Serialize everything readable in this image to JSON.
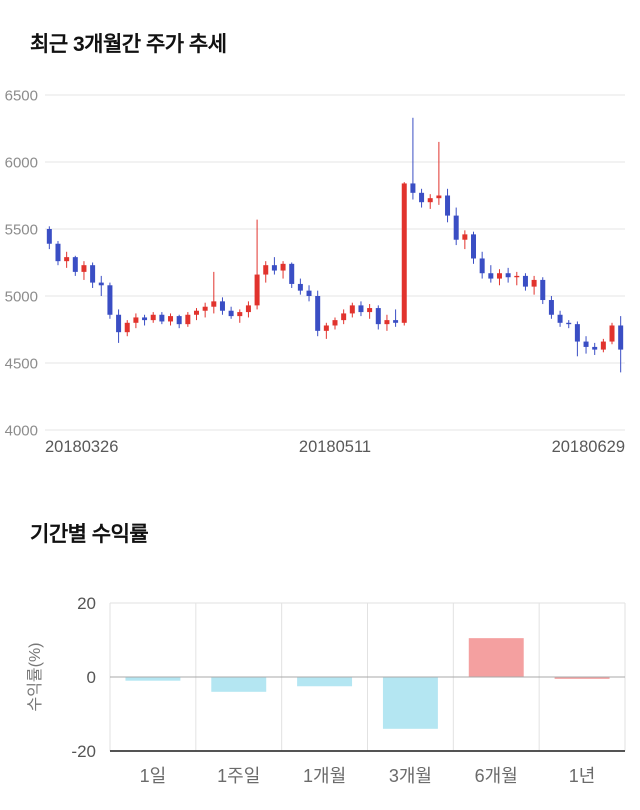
{
  "chart_data": [
    {
      "type": "candlestick",
      "title": "최근 3개월간 주가 추세",
      "ylim": [
        4000,
        6500
      ],
      "yticks": [
        4000,
        4500,
        5000,
        5500,
        6000,
        6500
      ],
      "xtick_labels": [
        "20180326",
        "20180511",
        "20180629"
      ],
      "up_color": "#e1332d",
      "down_color": "#3a4ec4",
      "grid_color": "#e4e4e4",
      "candles": [
        [
          5500,
          5520,
          5350,
          5390
        ],
        [
          5390,
          5410,
          5230,
          5260
        ],
        [
          5260,
          5330,
          5210,
          5290
        ],
        [
          5290,
          5300,
          5150,
          5180
        ],
        [
          5180,
          5260,
          5120,
          5230
        ],
        [
          5230,
          5250,
          5060,
          5100
        ],
        [
          5100,
          5150,
          5000,
          5080
        ],
        [
          5080,
          5100,
          4830,
          4860
        ],
        [
          4860,
          4900,
          4650,
          4730
        ],
        [
          4730,
          4820,
          4700,
          4800
        ],
        [
          4800,
          4870,
          4760,
          4840
        ],
        [
          4840,
          4860,
          4780,
          4820
        ],
        [
          4820,
          4880,
          4800,
          4860
        ],
        [
          4860,
          4880,
          4790,
          4810
        ],
        [
          4810,
          4870,
          4780,
          4850
        ],
        [
          4850,
          4860,
          4760,
          4790
        ],
        [
          4790,
          4880,
          4770,
          4860
        ],
        [
          4860,
          4910,
          4820,
          4890
        ],
        [
          4890,
          4950,
          4840,
          4920
        ],
        [
          4920,
          5180,
          4870,
          4960
        ],
        [
          4960,
          4990,
          4860,
          4890
        ],
        [
          4890,
          4920,
          4830,
          4850
        ],
        [
          4850,
          4900,
          4800,
          4880
        ],
        [
          4880,
          4960,
          4840,
          4930
        ],
        [
          4930,
          5570,
          4900,
          5160
        ],
        [
          5160,
          5260,
          5100,
          5230
        ],
        [
          5230,
          5290,
          5160,
          5190
        ],
        [
          5190,
          5260,
          5130,
          5240
        ],
        [
          5240,
          5250,
          5060,
          5090
        ],
        [
          5090,
          5130,
          5010,
          5040
        ],
        [
          5040,
          5080,
          4960,
          5000
        ],
        [
          5000,
          5040,
          4700,
          4740
        ],
        [
          4740,
          4800,
          4680,
          4780
        ],
        [
          4780,
          4840,
          4750,
          4820
        ],
        [
          4820,
          4900,
          4790,
          4870
        ],
        [
          4870,
          4950,
          4840,
          4930
        ],
        [
          4930,
          4960,
          4850,
          4880
        ],
        [
          4880,
          4940,
          4830,
          4910
        ],
        [
          4910,
          4930,
          4750,
          4790
        ],
        [
          4790,
          4860,
          4740,
          4820
        ],
        [
          4820,
          4900,
          4770,
          4800
        ],
        [
          4800,
          5850,
          4780,
          5840
        ],
        [
          5840,
          6330,
          5720,
          5770
        ],
        [
          5770,
          5800,
          5660,
          5700
        ],
        [
          5700,
          5760,
          5650,
          5730
        ],
        [
          5730,
          6150,
          5680,
          5750
        ],
        [
          5750,
          5800,
          5550,
          5600
        ],
        [
          5600,
          5660,
          5380,
          5420
        ],
        [
          5420,
          5490,
          5350,
          5460
        ],
        [
          5460,
          5480,
          5240,
          5280
        ],
        [
          5280,
          5330,
          5130,
          5170
        ],
        [
          5170,
          5230,
          5100,
          5130
        ],
        [
          5130,
          5200,
          5080,
          5170
        ],
        [
          5170,
          5210,
          5100,
          5140
        ],
        [
          5140,
          5180,
          5080,
          5150
        ],
        [
          5150,
          5170,
          5040,
          5070
        ],
        [
          5070,
          5150,
          5010,
          5120
        ],
        [
          5120,
          5140,
          4940,
          4970
        ],
        [
          4970,
          5000,
          4830,
          4860
        ],
        [
          4860,
          4890,
          4770,
          4800
        ],
        [
          4800,
          4820,
          4760,
          4790
        ],
        [
          4790,
          4810,
          4550,
          4660
        ],
        [
          4660,
          4700,
          4570,
          4620
        ],
        [
          4620,
          4650,
          4560,
          4600
        ],
        [
          4600,
          4680,
          4580,
          4660
        ],
        [
          4660,
          4800,
          4640,
          4780
        ],
        [
          4780,
          4850,
          4430,
          4600
        ]
      ]
    },
    {
      "type": "bar",
      "title": "기간별 수익률",
      "ylabel": "수익률(%)",
      "ylim": [
        -20,
        20
      ],
      "yticks": [
        20,
        0,
        -20
      ],
      "categories": [
        "1일",
        "1주일",
        "1개월",
        "3개월",
        "6개월",
        "1년"
      ],
      "values": [
        -1,
        -4,
        -2.5,
        -14,
        10.5,
        -0.5
      ],
      "bar_colors": [
        "#b4e6f2",
        "#b4e6f2",
        "#b4e6f2",
        "#b4e6f2",
        "#f4a0a0",
        "#f4a0a0"
      ],
      "grid_color": "#e2e2e2",
      "zero_line_color": "#a8a8a8",
      "bottom_line_color": "#3c3c3c"
    }
  ]
}
